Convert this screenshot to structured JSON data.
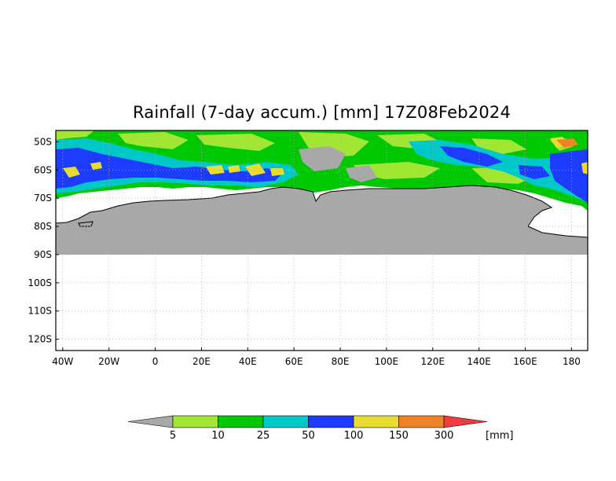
{
  "title": "Rainfall (7-day accum.) [mm] 17Z08Feb2024",
  "map": {
    "lat_labels": [
      "50S",
      "60S",
      "70S",
      "80S",
      "90S",
      "100S",
      "110S",
      "120S"
    ],
    "lon_labels": [
      "40W",
      "20W",
      "0",
      "20E",
      "40E",
      "60E",
      "80E",
      "100E",
      "120E",
      "140E",
      "160E",
      "180"
    ],
    "lat_range": [
      -124,
      -46
    ],
    "lon_range": [
      -43,
      187
    ],
    "grid": "dotted",
    "land_color": "#a8a8a8",
    "coast_color": "#000000"
  },
  "legend": {
    "levels": [
      "5",
      "10",
      "25",
      "50",
      "100",
      "150",
      "300"
    ],
    "unit": "[mm]",
    "colors": [
      "#a8a8a8",
      "#a0e632",
      "#00c800",
      "#00c8c8",
      "#1e3cff",
      "#e6dc32",
      "#f08228",
      "#f03c3c"
    ]
  }
}
